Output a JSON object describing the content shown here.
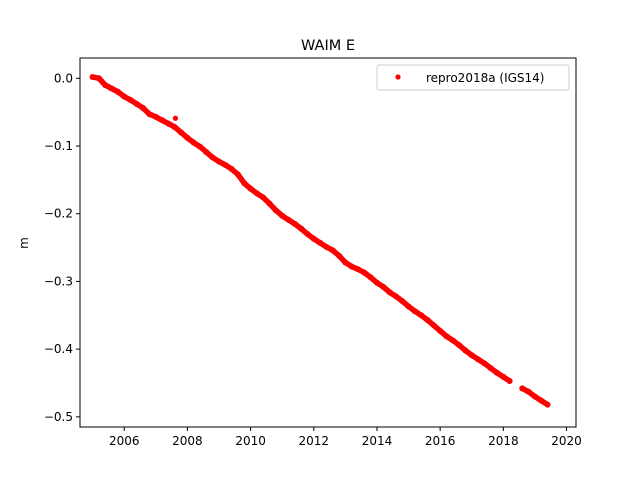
{
  "chart_data": {
    "type": "scatter",
    "title": "WAIM E",
    "xlabel": "",
    "ylabel": "m",
    "xlim": [
      2004.6,
      2020.3
    ],
    "ylim": [
      -0.515,
      0.03
    ],
    "xticks": [
      2006,
      2008,
      2010,
      2012,
      2014,
      2016,
      2018,
      2020
    ],
    "xtick_labels": [
      "2006",
      "2008",
      "2010",
      "2012",
      "2014",
      "2016",
      "2018",
      "2020"
    ],
    "yticks": [
      0.0,
      -0.1,
      -0.2,
      -0.3,
      -0.4,
      -0.5
    ],
    "ytick_labels": [
      "0.0",
      "−0.1",
      "−0.2",
      "−0.3",
      "−0.4",
      "−0.5"
    ],
    "grid": false,
    "legend_position": "top-right",
    "series": [
      {
        "name": "repro2018a (IGS14)",
        "color": "#ff0000",
        "marker": "dot",
        "x": [
          2005.0,
          2005.2,
          2005.4,
          2005.6,
          2005.8,
          2006.0,
          2006.2,
          2006.4,
          2006.6,
          2006.8,
          2007.0,
          2007.2,
          2007.4,
          2007.6,
          2007.8,
          2008.0,
          2008.2,
          2008.4,
          2008.6,
          2008.8,
          2009.0,
          2009.2,
          2009.4,
          2009.6,
          2009.8,
          2010.0,
          2010.2,
          2010.4,
          2010.6,
          2010.8,
          2011.0,
          2011.2,
          2011.4,
          2011.6,
          2011.8,
          2012.0,
          2012.2,
          2012.4,
          2012.6,
          2012.8,
          2013.0,
          2013.2,
          2013.4,
          2013.6,
          2013.8,
          2014.0,
          2014.2,
          2014.4,
          2014.6,
          2014.8,
          2015.0,
          2015.2,
          2015.4,
          2015.6,
          2015.8,
          2016.0,
          2016.2,
          2016.4,
          2016.6,
          2016.8,
          2017.0,
          2017.2,
          2017.4,
          2017.6,
          2017.8,
          2018.0,
          2018.2,
          2018.6,
          2018.8,
          2019.0,
          2019.2,
          2019.4
        ],
        "y": [
          0.002,
          0.0,
          -0.01,
          -0.015,
          -0.02,
          -0.027,
          -0.032,
          -0.038,
          -0.044,
          -0.053,
          -0.057,
          -0.062,
          -0.067,
          -0.072,
          -0.08,
          -0.088,
          -0.095,
          -0.101,
          -0.109,
          -0.117,
          -0.123,
          -0.128,
          -0.134,
          -0.142,
          -0.155,
          -0.163,
          -0.17,
          -0.176,
          -0.185,
          -0.195,
          -0.203,
          -0.209,
          -0.215,
          -0.222,
          -0.23,
          -0.237,
          -0.243,
          -0.249,
          -0.254,
          -0.262,
          -0.272,
          -0.278,
          -0.282,
          -0.287,
          -0.294,
          -0.302,
          -0.308,
          -0.316,
          -0.322,
          -0.329,
          -0.337,
          -0.344,
          -0.35,
          -0.357,
          -0.365,
          -0.373,
          -0.381,
          -0.387,
          -0.394,
          -0.402,
          -0.409,
          -0.415,
          -0.421,
          -0.428,
          -0.435,
          -0.441,
          -0.447,
          -0.458,
          -0.463,
          -0.47,
          -0.476,
          -0.482
        ],
        "outliers": [
          {
            "x": 2007.62,
            "y": -0.059
          }
        ]
      }
    ]
  }
}
